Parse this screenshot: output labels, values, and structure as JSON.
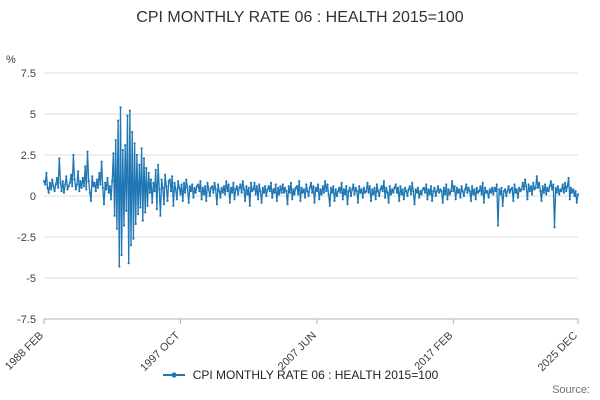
{
  "header": {
    "title": "CPI MONTHLY RATE 06 : HEALTH 2015=100"
  },
  "legend": {
    "label": "CPI MONTHLY RATE 06 : HEALTH 2015=100"
  },
  "footer": {
    "source": "Source:"
  },
  "chart_data": {
    "type": "line",
    "title": "CPI MONTHLY RATE 06 : HEALTH 2015=100",
    "xlabel": "",
    "ylabel": "%",
    "ylim": [
      -7.5,
      7.5
    ],
    "yticks": [
      7.5,
      5,
      2.5,
      0,
      -2.5,
      -5,
      -7.5
    ],
    "ytick_labels": [
      "7.5",
      "5",
      "2.5",
      "0",
      "-2.5",
      "-5",
      "-7.5"
    ],
    "xticks": [
      {
        "label": "1988 FEB",
        "index": 0
      },
      {
        "label": "1997 OCT",
        "index": 116
      },
      {
        "label": "2007 JUN",
        "index": 232
      },
      {
        "label": "2017 FEB",
        "index": 348
      },
      {
        "label": "2025 DEC",
        "index": 454
      }
    ],
    "x_start": "1988 FEB",
    "x_end": "2025 DEC",
    "frequency": "monthly",
    "grid": true,
    "legend_position": "bottom",
    "line_color": "#1f77b4",
    "grid_color": "#dcdcdc",
    "axis_color": "#b3b3b3",
    "series": [
      {
        "name": "CPI MONTHLY RATE 06 : HEALTH 2015=100",
        "values": [
          0.9,
          0.7,
          1.4,
          0.5,
          0.2,
          0.8,
          0.4,
          1.0,
          0.6,
          0.3,
          0.7,
          1.1,
          0.5,
          2.3,
          0.8,
          0.3,
          0.9,
          0.2,
          0.7,
          1.2,
          0.4,
          0.6,
          0.8,
          1.3,
          0.6,
          2.5,
          1.0,
          0.4,
          0.7,
          1.5,
          0.3,
          0.9,
          0.5,
          1.1,
          0.6,
          1.8,
          0.4,
          2.7,
          0.9,
          0.2,
          -0.3,
          1.2,
          0.6,
          0.8,
          0.3,
          1.0,
          0.5,
          1.4,
          0.7,
          2.1,
          0.5,
          -0.5,
          0.8,
          0.4,
          1.1,
          0.2,
          0.6,
          -0.2,
          0.9,
          2.6,
          -1.2,
          3.4,
          -2.0,
          4.6,
          -4.3,
          5.4,
          -3.6,
          2.8,
          -1.8,
          3.1,
          -0.9,
          4.9,
          -4.1,
          5.2,
          -3.0,
          3.9,
          -2.6,
          3.2,
          -1.7,
          2.5,
          -1.1,
          1.9,
          -0.7,
          2.9,
          -1.5,
          2.3,
          -1.0,
          1.7,
          -0.6,
          1.4,
          0.2,
          1.0,
          -0.4,
          0.8,
          0.3,
          1.6,
          -0.8,
          1.9,
          0.4,
          -1.2,
          1.0,
          0.5,
          -0.5,
          1.3,
          0.6,
          -0.3,
          0.9,
          1.0,
          0.3,
          1.2,
          -0.6,
          0.8,
          0.4,
          -0.2,
          0.9,
          0.5,
          0.1,
          0.7,
          -0.3,
          0.8,
          0.2,
          1.0,
          0.5,
          -0.4,
          0.6,
          0.3,
          0.7,
          -0.1,
          0.5,
          0.2,
          0.6,
          0.7,
          0.3,
          0.9,
          -0.2,
          0.5,
          0.1,
          0.6,
          -0.3,
          0.8,
          0.4,
          0.0,
          0.5,
          0.6,
          0.2,
          0.8,
          0.4,
          -0.5,
          0.7,
          0.3,
          -0.1,
          0.5,
          0.2,
          0.6,
          0.1,
          0.9,
          0.3,
          0.7,
          -0.4,
          0.5,
          0.2,
          0.8,
          -0.2,
          0.4,
          0.6,
          0.1,
          0.5,
          0.7,
          0.2,
          0.9,
          0.4,
          -0.3,
          0.6,
          0.1,
          0.5,
          -0.6,
          0.8,
          0.3,
          0.4,
          0.8,
          0.1,
          0.6,
          -0.2,
          0.7,
          0.3,
          -0.4,
          0.5,
          0.2,
          0.6,
          0.0,
          0.4,
          0.6,
          0.3,
          0.8,
          -0.1,
          0.4,
          0.2,
          0.7,
          -0.3,
          0.5,
          0.1,
          0.6,
          0.2,
          0.7,
          0.2,
          0.5,
          0.3,
          -0.5,
          0.6,
          0.2,
          0.8,
          -0.2,
          0.4,
          0.1,
          0.5,
          0.6,
          0.1,
          0.9,
          -0.3,
          0.5,
          0.2,
          0.4,
          -0.1,
          0.7,
          0.3,
          0.0,
          0.5,
          0.8,
          0.2,
          0.6,
          -0.4,
          0.5,
          0.3,
          0.7,
          -0.2,
          0.4,
          0.1,
          0.6,
          0.2,
          0.9,
          0.3,
          0.7,
          0.1,
          -0.6,
          0.5,
          0.2,
          0.6,
          -0.3,
          0.4,
          0.0,
          0.3,
          0.5,
          0.2,
          0.8,
          -0.2,
          0.4,
          0.1,
          0.6,
          -0.5,
          0.3,
          0.5,
          0.0,
          0.4,
          0.7,
          0.1,
          0.5,
          0.3,
          -0.4,
          0.6,
          0.2,
          0.4,
          -0.1,
          0.5,
          0.2,
          0.3,
          0.8,
          0.2,
          0.6,
          -0.3,
          0.4,
          0.1,
          0.5,
          -0.2,
          0.7,
          0.3,
          0.0,
          0.4,
          0.6,
          0.3,
          0.9,
          -0.1,
          0.5,
          0.2,
          -0.4,
          0.6,
          0.1,
          0.4,
          0.2,
          0.5,
          0.7,
          0.2,
          0.5,
          -0.3,
          0.6,
          0.1,
          0.4,
          -0.2,
          0.5,
          0.3,
          0.0,
          0.4,
          0.6,
          0.1,
          0.8,
          0.3,
          -0.5,
          0.4,
          0.2,
          0.5,
          -0.1,
          0.3,
          0.1,
          0.4,
          0.5,
          0.2,
          0.7,
          -0.2,
          0.4,
          0.1,
          0.6,
          -0.3,
          0.3,
          0.5,
          0.0,
          0.3,
          0.6,
          0.2,
          0.4,
          0.3,
          -0.4,
          0.5,
          0.1,
          0.7,
          -0.2,
          0.4,
          0.1,
          0.3,
          0.9,
          0.3,
          0.6,
          -0.2,
          0.5,
          0.2,
          0.4,
          -0.1,
          0.6,
          0.3,
          0.0,
          0.4,
          0.7,
          0.2,
          0.5,
          0.3,
          -0.3,
          0.6,
          0.1,
          0.4,
          -0.2,
          0.5,
          0.2,
          0.3,
          0.6,
          0.1,
          0.8,
          -0.4,
          0.5,
          0.2,
          0.3,
          -0.1,
          0.4,
          0.2,
          0.5,
          0.1,
          0.5,
          0.3,
          0.7,
          -1.8,
          0.4,
          0.1,
          0.5,
          -0.6,
          0.3,
          0.4,
          0.0,
          0.3,
          0.6,
          0.2,
          0.4,
          0.5,
          -0.3,
          0.7,
          0.2,
          0.4,
          -0.1,
          0.5,
          0.3,
          0.4,
          0.8,
          0.4,
          1.0,
          0.6,
          -0.2,
          0.7,
          0.3,
          0.6,
          0.1,
          0.8,
          0.4,
          0.5,
          1.2,
          0.5,
          0.8,
          0.3,
          -0.3,
          0.6,
          0.2,
          0.7,
          0.1,
          0.5,
          0.3,
          0.6,
          0.9,
          0.4,
          0.7,
          -1.9,
          0.5,
          0.2,
          0.6,
          0.1,
          0.4,
          0.3,
          0.7,
          0.2,
          0.8,
          0.3,
          0.6,
          1.1,
          -0.2,
          0.5,
          0.2,
          0.4,
          0.0,
          0.3,
          -0.4,
          0.1
        ]
      }
    ]
  }
}
